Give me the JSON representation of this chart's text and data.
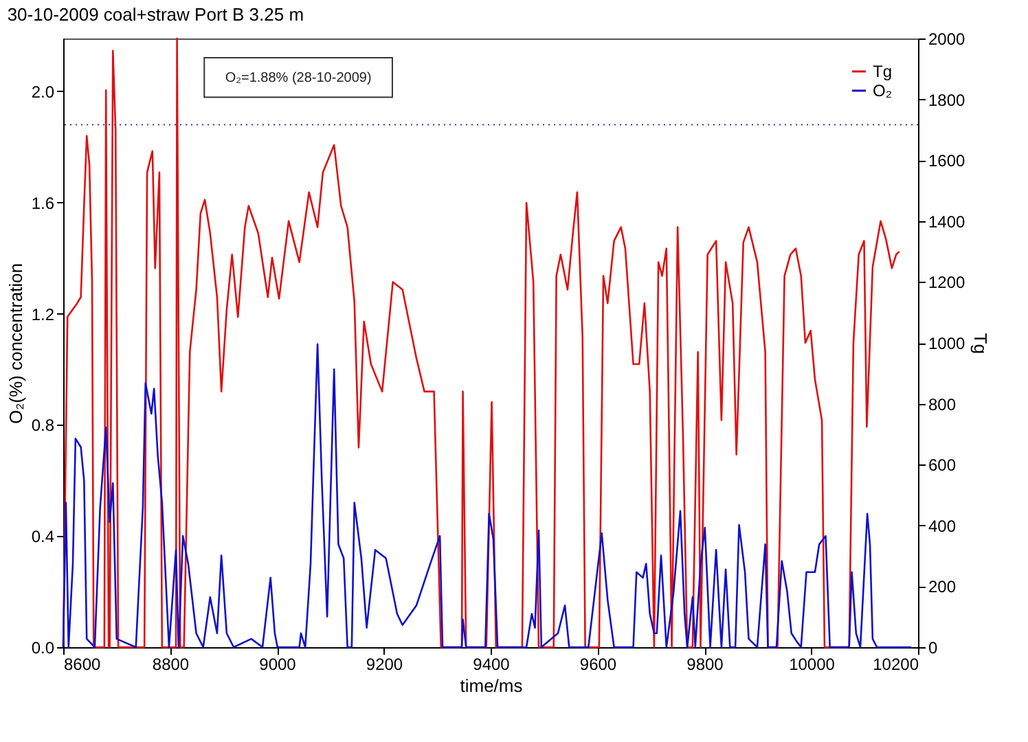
{
  "chart_data": {
    "type": "line",
    "title": "30-10-2009 coal+straw Port B 3.25 m",
    "xlabel": "time/ms",
    "ylabel": "O₂(%) concentration",
    "y2label": "Tg",
    "xlim": [
      8600,
      10200
    ],
    "xticks": [
      8600,
      8800,
      9000,
      9200,
      9400,
      9600,
      9800,
      10000,
      10200
    ],
    "ylim": [
      0,
      2.19
    ],
    "yticks": [
      {
        "value": 0,
        "label": "0.0"
      },
      {
        "value": 0.4,
        "label": "0.4"
      },
      {
        "value": 0.8,
        "label": "0.8"
      },
      {
        "value": 1.2,
        "label": "1.2"
      },
      {
        "value": 1.6,
        "label": "1.6"
      },
      {
        "value": 2.0,
        "label": "2.0"
      }
    ],
    "y2lim": [
      0,
      2000
    ],
    "y2ticks": [
      0,
      200,
      400,
      600,
      800,
      1000,
      1200,
      1400,
      1600,
      1800,
      2000
    ],
    "grid": false,
    "legend": "top right",
    "marker": "none",
    "line_style": "solid",
    "ref_lines": [
      {
        "axis": "y",
        "value": 1.88,
        "label": "O₂=1.88% (28-10-2009)",
        "color": "#3333dd",
        "line_style": "dotted"
      }
    ],
    "series": [
      {
        "name": "Tg",
        "color": "#dd1111",
        "axis": "y2",
        "x": [
          8600,
          8608,
          8626,
          8633,
          8639,
          8644,
          8649,
          8654,
          8657,
          8677,
          8680,
          8685,
          8687,
          8693,
          8698,
          8703,
          8752,
          8757,
          8767,
          8772,
          8780,
          8785,
          8811,
          8813,
          8819,
          8826,
          8837,
          8849,
          8857,
          8865,
          8875,
          8888,
          8896,
          8906,
          8916,
          8927,
          8940,
          8947,
          8965,
          8983,
          8991,
          9004,
          9022,
          9042,
          9060,
          9076,
          9086,
          9107,
          9120,
          9132,
          9145,
          9153,
          9163,
          9176,
          9197,
          9217,
          9235,
          9261,
          9276,
          9294,
          9307,
          9346,
          9348,
          9354,
          9392,
          9402,
          9410,
          9459,
          9467,
          9480,
          9490,
          9518,
          9523,
          9531,
          9544,
          9554,
          9562,
          9572,
          9577,
          9603,
          9611,
          9619,
          9631,
          9644,
          9652,
          9667,
          9678,
          9688,
          9698,
          9706,
          9714,
          9721,
          9729,
          9734,
          9739,
          9750,
          9760,
          9768,
          9778,
          9788,
          9793,
          9806,
          9822,
          9832,
          9840,
          9853,
          9860,
          9873,
          9883,
          9899,
          9914,
          9919,
          9937,
          9950,
          9961,
          9971,
          9981,
          9989,
          9999,
          10007,
          10020,
          10025,
          10071,
          10079,
          10089,
          10099,
          10104,
          10115,
          10130,
          10140,
          10151,
          10159,
          10165
        ],
        "values": [
          0,
          1086,
          1130,
          1150,
          1450,
          1680,
          1585,
          1200,
          0,
          0,
          1830,
          0,
          0,
          1960,
          1700,
          0,
          0,
          1560,
          1630,
          1245,
          1560,
          0,
          0,
          2000,
          0,
          0,
          970,
          1175,
          1425,
          1470,
          1360,
          1150,
          840,
          1110,
          1290,
          1085,
          1380,
          1450,
          1360,
          1150,
          1280,
          1145,
          1400,
          1265,
          1495,
          1380,
          1560,
          1650,
          1450,
          1380,
          1135,
          656,
          1070,
          930,
          840,
          1200,
          1175,
          950,
          840,
          840,
          0,
          0,
          840,
          0,
          0,
          805,
          0,
          0,
          1460,
          1200,
          0,
          0,
          1220,
          1290,
          1175,
          1360,
          1495,
          1020,
          0,
          0,
          1220,
          1130,
          1335,
          1380,
          1310,
          930,
          930,
          1130,
          840,
          0,
          1265,
          1220,
          1310,
          700,
          0,
          1380,
          700,
          0,
          0,
          970,
          0,
          1290,
          1335,
          746,
          1265,
          1130,
          633,
          1330,
          1380,
          1265,
          970,
          0,
          0,
          1220,
          1290,
          1310,
          1220,
          1000,
          1040,
          880,
          746,
          0,
          0,
          1000,
          1290,
          1335,
          724,
          1250,
          1400,
          1340,
          1245,
          1290,
          1300
        ]
      },
      {
        "name": "O₂",
        "color": "#1111cc",
        "axis": "y",
        "x": [
          8600,
          8605,
          8610,
          8618,
          8623,
          8633,
          8639,
          8644,
          8659,
          8669,
          8680,
          8687,
          8693,
          8700,
          8736,
          8749,
          8754,
          8765,
          8770,
          8777,
          8785,
          8798,
          8811,
          8816,
          8824,
          8834,
          8849,
          8862,
          8875,
          8888,
          8896,
          8906,
          8919,
          8952,
          8973,
          8988,
          8996,
          9001,
          9042,
          9045,
          9053,
          9063,
          9076,
          9084,
          9094,
          9107,
          9115,
          9125,
          9132,
          9140,
          9145,
          9158,
          9168,
          9184,
          9204,
          9225,
          9235,
          9261,
          9287,
          9305,
          9310,
          9346,
          9348,
          9354,
          9390,
          9397,
          9405,
          9413,
          9467,
          9477,
          9483,
          9490,
          9495,
          9526,
          9539,
          9547,
          9583,
          9608,
          9619,
          9631,
          9667,
          9673,
          9685,
          9691,
          9698,
          9706,
          9711,
          9719,
          9729,
          9742,
          9755,
          9763,
          9768,
          9778,
          9783,
          9793,
          9801,
          9811,
          9822,
          9832,
          9840,
          9848,
          9858,
          9865,
          9876,
          9883,
          9899,
          9914,
          9919,
          9935,
          9945,
          9955,
          9963,
          9973,
          9981,
          9991,
          10007,
          10015,
          10027,
          10035,
          10071,
          10076,
          10084,
          10092,
          10105,
          10110,
          10115,
          10123,
          10187
        ],
        "values": [
          0,
          0.52,
          0,
          0.3,
          0.75,
          0.72,
          0.6,
          0.03,
          0,
          0.5,
          0.79,
          0.45,
          0.59,
          0.03,
          0,
          0.5,
          0.95,
          0.84,
          0.93,
          0.69,
          0.52,
          0,
          0.35,
          0,
          0.4,
          0.3,
          0.05,
          0,
          0.18,
          0.05,
          0.33,
          0.05,
          0,
          0.03,
          0,
          0.25,
          0.05,
          0,
          0,
          0.05,
          0,
          0.3,
          1.09,
          0.6,
          0.11,
          1.0,
          0.37,
          0.32,
          0,
          0,
          0.52,
          0.32,
          0.07,
          0.35,
          0.32,
          0.12,
          0.08,
          0.15,
          0.3,
          0.4,
          0,
          0,
          0.1,
          0,
          0,
          0.48,
          0.39,
          0,
          0,
          0.12,
          0.07,
          0.42,
          0,
          0.05,
          0.15,
          0,
          0,
          0.41,
          0.17,
          0,
          0,
          0.27,
          0.25,
          0.3,
          0.12,
          0.05,
          0.05,
          0.33,
          0,
          0.19,
          0.49,
          0.12,
          0,
          0.18,
          0,
          0.3,
          0.43,
          0,
          0.35,
          0,
          0.28,
          0,
          0,
          0.44,
          0.27,
          0.03,
          0,
          0.37,
          0,
          0,
          0.31,
          0.2,
          0.05,
          0.02,
          0,
          0.27,
          0.27,
          0.37,
          0.4,
          0,
          0,
          0.27,
          0.05,
          0,
          0.48,
          0.37,
          0.03,
          0,
          0
        ]
      }
    ]
  }
}
